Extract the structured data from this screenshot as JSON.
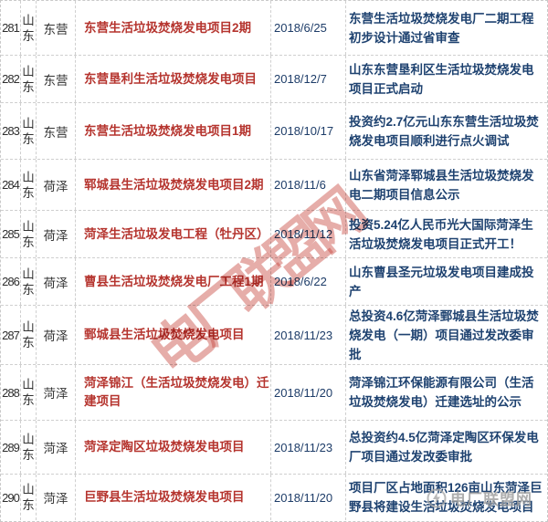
{
  "table": {
    "rows": [
      {
        "no": "281",
        "province": "山东",
        "city": "东营",
        "project": "东营生活垃圾焚烧发电项目2期",
        "date": "2018/6/25",
        "news": "东营生活垃圾焚烧发电厂二期工程初步设计通过省审查"
      },
      {
        "no": "282",
        "province": "山东",
        "city": "东营",
        "project": "东营垦利生活垃圾焚烧发电项目",
        "date": "2018/12/7",
        "news": "山东东营垦利区生活垃圾焚烧发电项目正式启动"
      },
      {
        "no": "283",
        "province": "山东",
        "city": "东营",
        "project": "东营生活垃圾焚烧发电项目1期",
        "date": "2018/10/17",
        "news": "投资约2.7亿元山东东营生活垃圾焚烧发电项目顺利进行点火调试"
      },
      {
        "no": "284",
        "province": "山东",
        "city": "荷泽",
        "project": "郓城县生活垃圾焚烧发电项目2期",
        "date": "2018/11/6",
        "news": "山东省菏泽郓城县生活垃圾焚烧发电二期项目信息公示"
      },
      {
        "no": "285",
        "province": "山东",
        "city": "荷泽",
        "project": "菏泽生活垃圾发电工程（牡丹区）",
        "date": "2018/11/12",
        "news": "投资5.24亿人民币光大国际菏泽生活垃圾焚烧发电项目正式开工！"
      },
      {
        "no": "286",
        "province": "山东",
        "city": "荷泽",
        "project": "曹县生活垃圾焚烧发电厂工程1期",
        "date": "2018/6/22",
        "news": "山东曹县圣元垃圾发电项目建成投产"
      },
      {
        "no": "287",
        "province": "山东",
        "city": "荷泽",
        "project": "鄄城县生活垃圾焚烧发电项目",
        "date": "2018/11/23",
        "news": "总投资4.6亿菏泽鄄城县生活垃圾焚烧发电（一期）项目通过发改委审批"
      },
      {
        "no": "288",
        "province": "山东",
        "city": "菏泽",
        "project": "菏泽锦江（生活垃圾焚烧发电）迁建项目",
        "date": "2018/11/20",
        "news": "菏泽锦江环保能源有限公司（生活垃圾焚烧发电）迁建选址的公示"
      },
      {
        "no": "289",
        "province": "山东",
        "city": "菏泽",
        "project": "菏泽定陶区垃圾焚烧发电项目",
        "date": "2018/11/23",
        "news": "总投资约4.5亿菏泽定陶区环保发电厂项目通过发改委审批"
      },
      {
        "no": "290",
        "province": "山东",
        "city": "菏泽",
        "project": "巨野县生活垃圾焚烧发电项目",
        "date": "2018/11/20",
        "news": "项目厂区占地面积126亩山东菏泽巨野县将建设生活垃圾焚烧发电项目"
      }
    ]
  },
  "watermarks": {
    "diagonal": "电厂联盟网",
    "footer": "电厂联盟网"
  },
  "colors": {
    "project_red": "#b5342e",
    "news_navy": "#1e4270",
    "number_dark": "#2e2e2e",
    "border_gray": "#cfcfcf",
    "watermark_red": "#c6443c",
    "watermark_gray": "#9b9b9b"
  }
}
